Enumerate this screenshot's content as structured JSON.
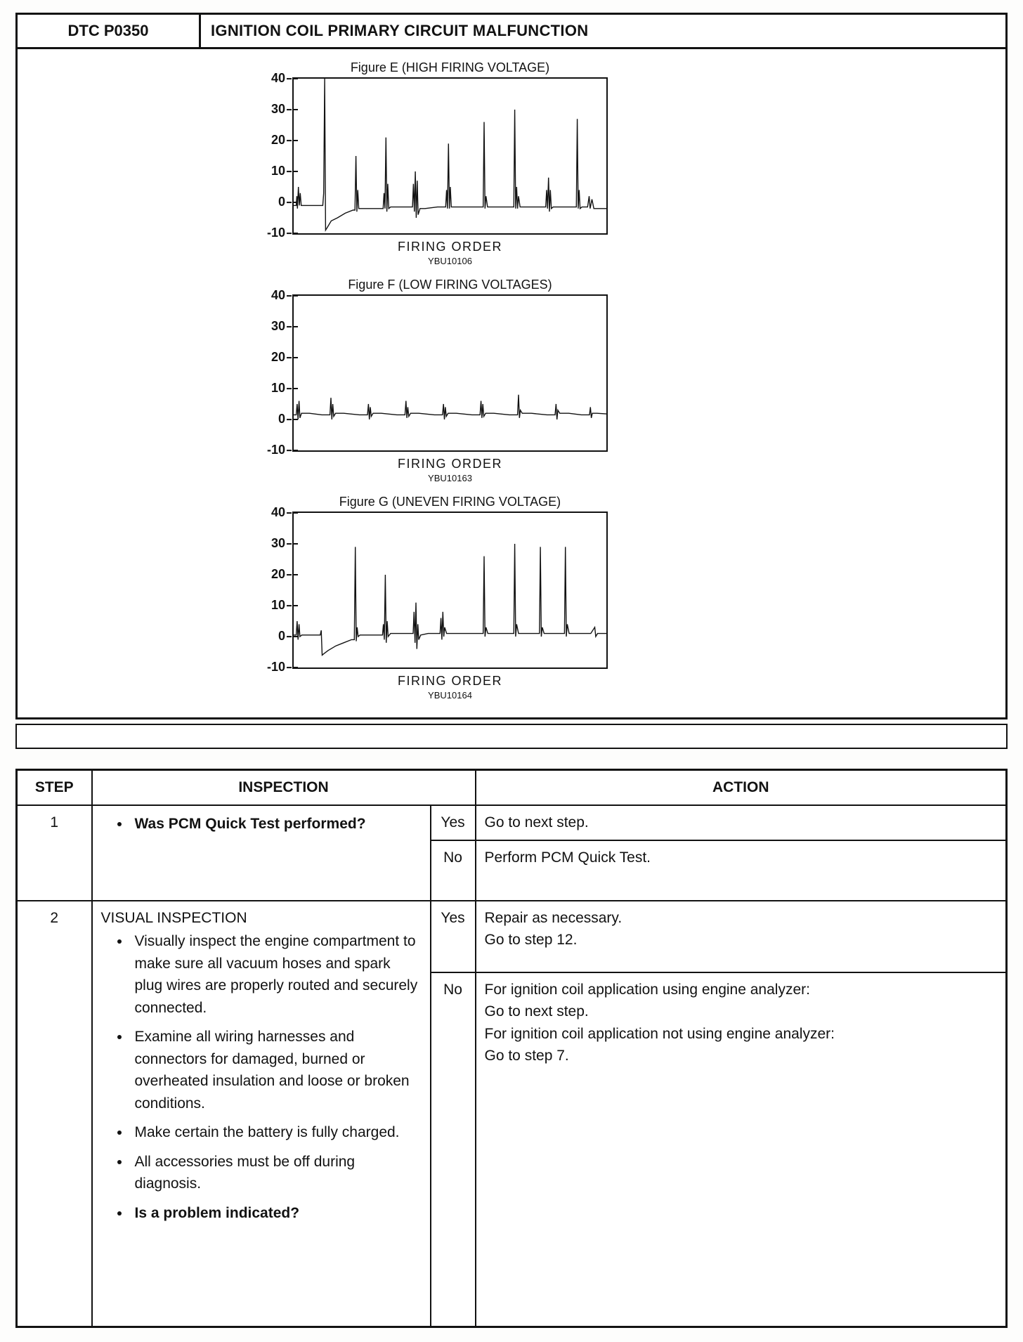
{
  "header": {
    "dtc": "DTC P0350",
    "title": "IGNITION COIL PRIMARY CIRCUIT MALFUNCTION"
  },
  "figures": [
    {
      "title": "Figure E (HIGH FIRING VOLTAGE)",
      "caption": "FIRING ORDER",
      "code": "YBU10106",
      "yticks": [
        40,
        30,
        20,
        10,
        0,
        -10
      ],
      "ymin": -10,
      "ymax": 40,
      "trace": [
        [
          0,
          -1
        ],
        [
          0.8,
          -1
        ],
        [
          1.0,
          2
        ],
        [
          1.2,
          -2
        ],
        [
          1.5,
          5
        ],
        [
          1.8,
          -1
        ],
        [
          2.1,
          3
        ],
        [
          2.4,
          -1
        ],
        [
          4,
          -1
        ],
        [
          8,
          -1
        ],
        [
          9.3,
          -1
        ],
        [
          9.6,
          3
        ],
        [
          9.9,
          40
        ],
        [
          10.2,
          -9
        ],
        [
          10.8,
          -8
        ],
        [
          12,
          -6
        ],
        [
          14,
          -5
        ],
        [
          16.5,
          -3.5
        ],
        [
          19,
          -2.5
        ],
        [
          19.6,
          -2.5
        ],
        [
          19.9,
          15
        ],
        [
          20.2,
          -3
        ],
        [
          20.5,
          4
        ],
        [
          20.8,
          -2
        ],
        [
          22,
          -2
        ],
        [
          26,
          -2
        ],
        [
          28.6,
          -2
        ],
        [
          28.9,
          3
        ],
        [
          29.2,
          -2
        ],
        [
          29.5,
          21
        ],
        [
          29.8,
          -3
        ],
        [
          30.1,
          6
        ],
        [
          30.4,
          -2
        ],
        [
          31,
          -1.5
        ],
        [
          34,
          -1.5
        ],
        [
          38,
          -1.5
        ],
        [
          38.3,
          6
        ],
        [
          38.6,
          -3
        ],
        [
          38.9,
          10
        ],
        [
          39.2,
          -5
        ],
        [
          39.5,
          7
        ],
        [
          39.8,
          -4
        ],
        [
          40.4,
          -2
        ],
        [
          42,
          -2
        ],
        [
          46,
          -1.5
        ],
        [
          48.6,
          -1.5
        ],
        [
          48.9,
          4
        ],
        [
          49.2,
          -2
        ],
        [
          49.5,
          19
        ],
        [
          49.8,
          -2
        ],
        [
          50.1,
          5
        ],
        [
          50.4,
          -1.5
        ],
        [
          52,
          -1.5
        ],
        [
          56,
          -1.5
        ],
        [
          60.6,
          -1.5
        ],
        [
          60.9,
          26
        ],
        [
          61.2,
          -2
        ],
        [
          61.5,
          2
        ],
        [
          62,
          -1.5
        ],
        [
          65,
          -1.5
        ],
        [
          70.4,
          -1.5
        ],
        [
          70.7,
          30
        ],
        [
          71.0,
          -2
        ],
        [
          71.3,
          5
        ],
        [
          71.6,
          -2
        ],
        [
          71.9,
          2
        ],
        [
          72.4,
          -1.5
        ],
        [
          74,
          -1.5
        ],
        [
          78,
          -1.5
        ],
        [
          80.6,
          -1.5
        ],
        [
          80.9,
          4
        ],
        [
          81.2,
          -2
        ],
        [
          81.5,
          8
        ],
        [
          81.8,
          -3
        ],
        [
          82.1,
          4
        ],
        [
          82.4,
          -2
        ],
        [
          83,
          -1.5
        ],
        [
          86,
          -1.5
        ],
        [
          90.4,
          -1.5
        ],
        [
          90.7,
          27
        ],
        [
          91.0,
          -2
        ],
        [
          91.3,
          4
        ],
        [
          91.6,
          -2
        ],
        [
          92.2,
          -1.5
        ],
        [
          94,
          -1.5
        ],
        [
          94.5,
          2
        ],
        [
          94.8,
          -2
        ],
        [
          95.4,
          1
        ],
        [
          96,
          -2
        ],
        [
          98,
          -2
        ],
        [
          100,
          -2
        ]
      ]
    },
    {
      "title": "Figure F (LOW FIRING VOLTAGES)",
      "caption": "FIRING ORDER",
      "code": "YBU10163",
      "yticks": [
        40,
        30,
        20,
        10,
        0,
        -10
      ],
      "ymin": -10,
      "ymax": 40,
      "trace": [
        [
          0,
          1.5
        ],
        [
          0.8,
          1.5
        ],
        [
          1.1,
          5
        ],
        [
          1.4,
          0
        ],
        [
          1.7,
          6
        ],
        [
          2.0,
          0.5
        ],
        [
          2.5,
          2
        ],
        [
          5,
          2
        ],
        [
          9,
          1.5
        ],
        [
          11.6,
          1.5
        ],
        [
          11.9,
          7
        ],
        [
          12.2,
          0
        ],
        [
          12.5,
          5
        ],
        [
          12.8,
          1
        ],
        [
          13.4,
          2
        ],
        [
          16,
          2
        ],
        [
          21,
          1.5
        ],
        [
          23.6,
          1.5
        ],
        [
          23.9,
          5
        ],
        [
          24.2,
          0
        ],
        [
          24.5,
          4
        ],
        [
          24.8,
          1
        ],
        [
          25.4,
          2
        ],
        [
          28,
          2
        ],
        [
          33,
          1.5
        ],
        [
          35.6,
          1.5
        ],
        [
          35.9,
          6
        ],
        [
          36.2,
          0.5
        ],
        [
          36.5,
          4
        ],
        [
          36.8,
          1
        ],
        [
          37.4,
          2
        ],
        [
          40,
          2
        ],
        [
          45,
          1.5
        ],
        [
          47.6,
          1.5
        ],
        [
          47.9,
          5
        ],
        [
          48.2,
          0
        ],
        [
          48.5,
          4
        ],
        [
          48.8,
          1
        ],
        [
          49.4,
          2
        ],
        [
          52,
          2
        ],
        [
          57,
          1.5
        ],
        [
          59.6,
          1.5
        ],
        [
          59.9,
          6
        ],
        [
          60.2,
          0.5
        ],
        [
          60.5,
          5
        ],
        [
          60.8,
          1
        ],
        [
          61.4,
          2
        ],
        [
          64,
          2
        ],
        [
          69,
          1.5
        ],
        [
          71.6,
          1.5
        ],
        [
          71.9,
          8
        ],
        [
          72.2,
          0.5
        ],
        [
          72.5,
          3
        ],
        [
          73.1,
          2
        ],
        [
          76,
          2
        ],
        [
          81,
          1.5
        ],
        [
          83.6,
          1.5
        ],
        [
          83.9,
          5
        ],
        [
          84.2,
          0
        ],
        [
          84.5,
          3
        ],
        [
          85.1,
          2
        ],
        [
          88,
          2
        ],
        [
          92,
          1.5
        ],
        [
          94.6,
          1.5
        ],
        [
          94.9,
          4
        ],
        [
          95.2,
          0.5
        ],
        [
          95.5,
          2
        ],
        [
          97,
          2
        ],
        [
          100,
          1.8
        ]
      ]
    },
    {
      "title": "Figure G (UNEVEN FIRING VOLTAGE)",
      "caption": "FIRING ORDER",
      "code": "YBU10164",
      "yticks": [
        40,
        30,
        20,
        10,
        0,
        -10
      ],
      "ymin": -10,
      "ymax": 40,
      "trace": [
        [
          0,
          0.5
        ],
        [
          0.8,
          0.5
        ],
        [
          1.1,
          5
        ],
        [
          1.4,
          -1
        ],
        [
          1.7,
          4
        ],
        [
          2.0,
          0
        ],
        [
          2.6,
          0.5
        ],
        [
          5,
          0.5
        ],
        [
          8.5,
          0.5
        ],
        [
          8.8,
          2
        ],
        [
          9.1,
          -6
        ],
        [
          9.7,
          -5.5
        ],
        [
          11,
          -4.5
        ],
        [
          13.5,
          -3
        ],
        [
          16,
          -2
        ],
        [
          18.5,
          -1
        ],
        [
          19.4,
          -1
        ],
        [
          19.7,
          29
        ],
        [
          20.0,
          -1.5
        ],
        [
          20.3,
          3
        ],
        [
          20.6,
          0
        ],
        [
          21.2,
          0.5
        ],
        [
          24,
          0.5
        ],
        [
          28.4,
          0.5
        ],
        [
          28.7,
          4
        ],
        [
          29.0,
          -1
        ],
        [
          29.3,
          20
        ],
        [
          29.6,
          -2
        ],
        [
          29.9,
          5
        ],
        [
          30.2,
          0
        ],
        [
          31,
          1
        ],
        [
          34,
          1
        ],
        [
          38.2,
          1
        ],
        [
          38.5,
          8
        ],
        [
          38.8,
          -2
        ],
        [
          39.1,
          11
        ],
        [
          39.4,
          -4
        ],
        [
          39.7,
          4
        ],
        [
          40.0,
          -1
        ],
        [
          40.6,
          0.5
        ],
        [
          43,
          1
        ],
        [
          46.8,
          1
        ],
        [
          47.1,
          6
        ],
        [
          47.4,
          -1
        ],
        [
          47.7,
          8
        ],
        [
          48.0,
          0
        ],
        [
          48.3,
          3
        ],
        [
          48.9,
          1
        ],
        [
          51,
          1
        ],
        [
          56,
          1
        ],
        [
          60.6,
          1
        ],
        [
          60.9,
          26
        ],
        [
          61.2,
          0
        ],
        [
          61.5,
          3
        ],
        [
          62.1,
          1
        ],
        [
          65,
          1
        ],
        [
          70.4,
          1
        ],
        [
          70.7,
          30
        ],
        [
          71.0,
          0
        ],
        [
          71.3,
          4
        ],
        [
          71.9,
          1
        ],
        [
          74,
          1
        ],
        [
          78.6,
          1
        ],
        [
          78.9,
          29
        ],
        [
          79.2,
          0
        ],
        [
          79.5,
          3
        ],
        [
          80.1,
          1
        ],
        [
          83,
          1
        ],
        [
          86.6,
          1
        ],
        [
          86.9,
          29
        ],
        [
          87.2,
          0
        ],
        [
          87.5,
          4
        ],
        [
          88.1,
          1
        ],
        [
          91,
          1
        ],
        [
          95,
          1
        ],
        [
          96.3,
          3
        ],
        [
          96.6,
          0
        ],
        [
          97.2,
          1
        ],
        [
          100,
          1
        ]
      ]
    }
  ],
  "table": {
    "headers": [
      "STEP",
      "INSPECTION",
      "ACTION"
    ],
    "rows": [
      {
        "step": "1",
        "bullets": [
          "Was PCM Quick Test performed?"
        ],
        "results": [
          {
            "label": "Yes",
            "action": "Go to next step."
          },
          {
            "label": "No",
            "action": "Perform PCM Quick Test."
          }
        ]
      },
      {
        "step": "2",
        "heading": "VISUAL INSPECTION",
        "bullets": [
          "Visually inspect the engine compartment to make sure all vacuum hoses and spark plug wires are properly routed and securely connected.",
          "Examine all wiring harnesses and connectors for damaged, burned or overheated insulation and loose or broken conditions.",
          "Make certain the battery is fully charged.",
          "All accessories must be off during diagnosis.",
          "Is a problem indicated?"
        ],
        "results": [
          {
            "label": "Yes",
            "action": "Repair as necessary.\nGo to step 12."
          },
          {
            "label": "No",
            "action": "For ignition coil application using engine analyzer:\nGo to next step.\nFor ignition coil application not using engine analyzer:\nGo to step 7."
          }
        ]
      }
    ]
  }
}
